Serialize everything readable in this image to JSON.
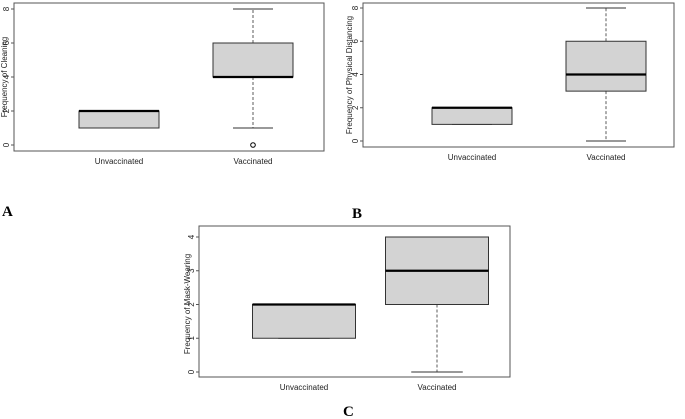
{
  "chart_data": [
    {
      "type": "box",
      "panel_label": "A",
      "ylabel": "Frequency of Cleaning",
      "categories": [
        "Unvaccinated",
        "Vaccinated"
      ],
      "ylim": [
        0,
        8
      ],
      "yticks": [
        "0",
        "2",
        "4",
        "6",
        "8"
      ],
      "boxes": [
        {
          "min": 1,
          "q1": 1,
          "median": 2,
          "q3": 2,
          "max": 2,
          "outliers": []
        },
        {
          "min": 1,
          "q1": 4,
          "median": 4,
          "q3": 6,
          "max": 8,
          "outliers": [
            0
          ]
        }
      ]
    },
    {
      "type": "box",
      "panel_label": "B",
      "ylabel": "Frequency of Physical Distancing",
      "categories": [
        "Unvaccinated",
        "Vaccinated"
      ],
      "ylim": [
        0,
        8
      ],
      "yticks": [
        "0",
        "2",
        "4",
        "6",
        "8"
      ],
      "boxes": [
        {
          "min": 1,
          "q1": 1,
          "median": 2,
          "q3": 2,
          "max": 2,
          "outliers": []
        },
        {
          "min": 0,
          "q1": 3,
          "median": 4,
          "q3": 6,
          "max": 8,
          "outliers": []
        }
      ]
    },
    {
      "type": "box",
      "panel_label": "C",
      "ylabel": "Frequency of Mask-Wearing",
      "categories": [
        "Unvaccinated",
        "Vaccinated"
      ],
      "ylim": [
        0,
        4
      ],
      "yticks": [
        "0",
        "1",
        "2",
        "3",
        "4"
      ],
      "boxes": [
        {
          "min": 1,
          "q1": 1,
          "median": 2,
          "q3": 2,
          "max": 2,
          "outliers": []
        },
        {
          "min": 0,
          "q1": 2,
          "median": 3,
          "q3": 4,
          "max": 4,
          "outliers": []
        }
      ]
    }
  ],
  "colors": {
    "box_fill": "#d3d3d3",
    "stroke": "#333333",
    "median": "#000000"
  }
}
